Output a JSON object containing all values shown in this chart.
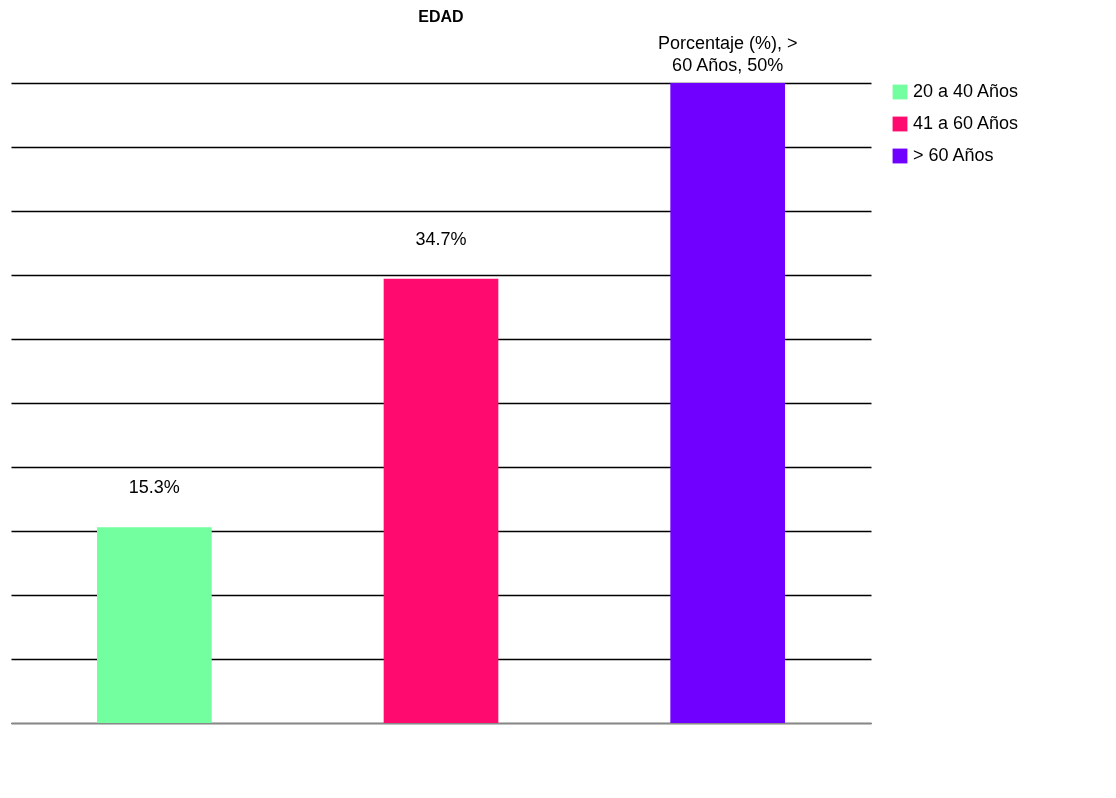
{
  "chart_data": {
    "type": "bar",
    "title": "EDAD",
    "categories": [
      null,
      null,
      null
    ],
    "stacked": true,
    "series": [
      {
        "name": "20 a 40 Años",
        "color": "#73ff9f",
        "values": [
          15.3,
          null,
          null
        ],
        "value_labels": [
          "15.3%",
          null,
          null
        ]
      },
      {
        "name": "41 a 60 Años",
        "color": "#ff0a6e",
        "values": [
          null,
          34.7,
          null
        ],
        "value_labels": [
          null,
          "34.7%",
          null
        ]
      },
      {
        "name": "> 60 Años",
        "color": "#7000ff",
        "values": [
          null,
          null,
          50
        ],
        "value_labels": [
          null,
          null,
          "Porcentaje  (%), > 60 Años, 50%"
        ]
      }
    ],
    "ylim": [
      0,
      50
    ],
    "yticks": [
      {
        "value": 0,
        "label": null
      },
      {
        "value": 5,
        "label": null
      },
      {
        "value": 10,
        "label": null
      },
      {
        "value": 15,
        "label": null
      },
      {
        "value": 20,
        "label": null
      },
      {
        "value": 25,
        "label": null
      },
      {
        "value": 30,
        "label": null
      },
      {
        "value": 35,
        "label": null
      },
      {
        "value": 40,
        "label": null
      },
      {
        "value": 45,
        "label": null
      },
      {
        "value": 50,
        "label": null
      }
    ],
    "grid": true,
    "legend": "right"
  }
}
